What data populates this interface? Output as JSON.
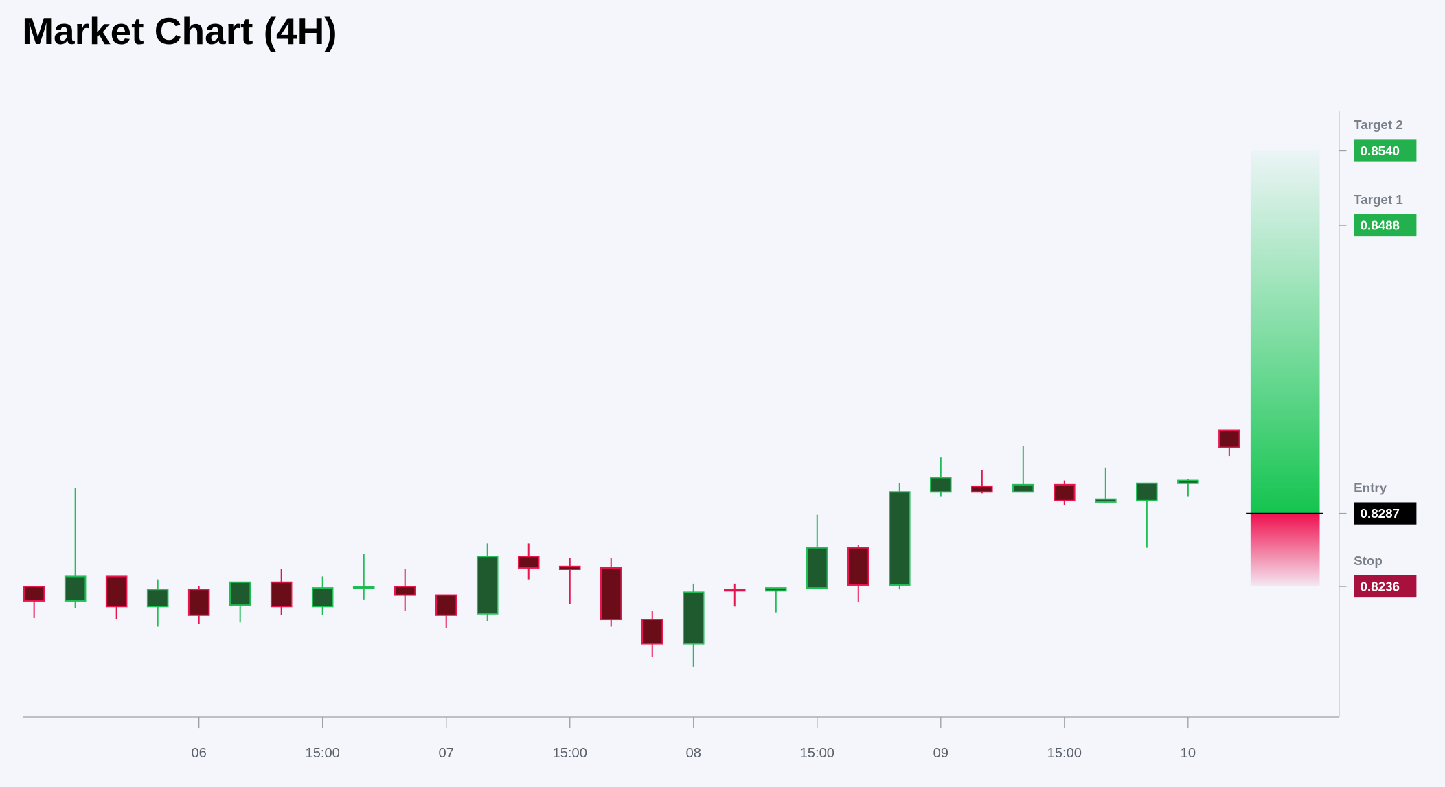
{
  "chart_data": {
    "type": "candlestick",
    "title": "Market Chart (4H)",
    "categories": [
      null,
      null,
      null,
      null,
      "06",
      null,
      null,
      "15:00",
      null,
      null,
      "07",
      null,
      null,
      "15:00",
      null,
      null,
      "08",
      null,
      null,
      "15:00",
      null,
      null,
      "09",
      null,
      null,
      "15:00",
      null,
      null,
      "10",
      null
    ],
    "open": [
      0.8236,
      0.8226,
      0.8243,
      0.8222,
      0.8234,
      0.8223,
      0.8239,
      0.8222,
      0.8235,
      0.8236,
      0.823,
      0.8217,
      0.8257,
      0.825,
      0.8249,
      0.8213,
      0.8196,
      0.8234,
      0.8233,
      0.8235,
      0.8263,
      0.8237,
      0.8302,
      0.8306,
      0.8302,
      0.8307,
      0.8295,
      0.8296,
      0.8308,
      0.8345
    ],
    "high": [
      0.8236,
      0.8305,
      0.8243,
      0.8241,
      0.8236,
      0.8239,
      0.8248,
      0.8243,
      0.8259,
      0.8248,
      0.823,
      0.8266,
      0.8266,
      0.8256,
      0.8256,
      0.8219,
      0.8238,
      0.8238,
      0.8235,
      0.8286,
      0.8265,
      0.8308,
      0.8326,
      0.8317,
      0.8334,
      0.831,
      0.8319,
      0.8308,
      0.8311,
      0.8345
    ],
    "low": [
      0.8214,
      0.8221,
      0.8213,
      0.8208,
      0.821,
      0.8211,
      0.8216,
      0.8216,
      0.8227,
      0.8219,
      0.8207,
      0.8212,
      0.8241,
      0.8224,
      0.8208,
      0.8187,
      0.818,
      0.8222,
      0.8218,
      0.8235,
      0.8225,
      0.8234,
      0.8299,
      0.8301,
      0.8302,
      0.8293,
      0.8294,
      0.8263,
      0.8299,
      0.8327
    ],
    "close": [
      0.8226,
      0.8243,
      0.8222,
      0.8234,
      0.8216,
      0.8239,
      0.8222,
      0.8235,
      0.8236,
      0.823,
      0.8216,
      0.8257,
      0.8249,
      0.8248,
      0.8213,
      0.8196,
      0.8232,
      0.8233,
      0.8235,
      0.8263,
      0.8237,
      0.8302,
      0.8312,
      0.8302,
      0.8307,
      0.8296,
      0.8297,
      0.8308,
      0.831,
      0.8333
    ],
    "up_color": "#1fbf55",
    "up_fill": "#1f5a2f",
    "down_color": "#e8164f",
    "down_fill": "#6a0d18",
    "ylim": [
      0.8145,
      0.8568
    ],
    "levels": [
      {
        "name": "Target 2",
        "value": 0.854,
        "label": "0.8540",
        "color": "#22b14c"
      },
      {
        "name": "Target 1",
        "value": 0.8488,
        "label": "0.8488",
        "color": "#22b14c"
      },
      {
        "name": "Entry",
        "value": 0.8287,
        "label": "0.8287",
        "color": "#000000"
      },
      {
        "name": "Stop",
        "value": 0.8236,
        "label": "0.8236",
        "color": "#a8103e"
      }
    ]
  }
}
